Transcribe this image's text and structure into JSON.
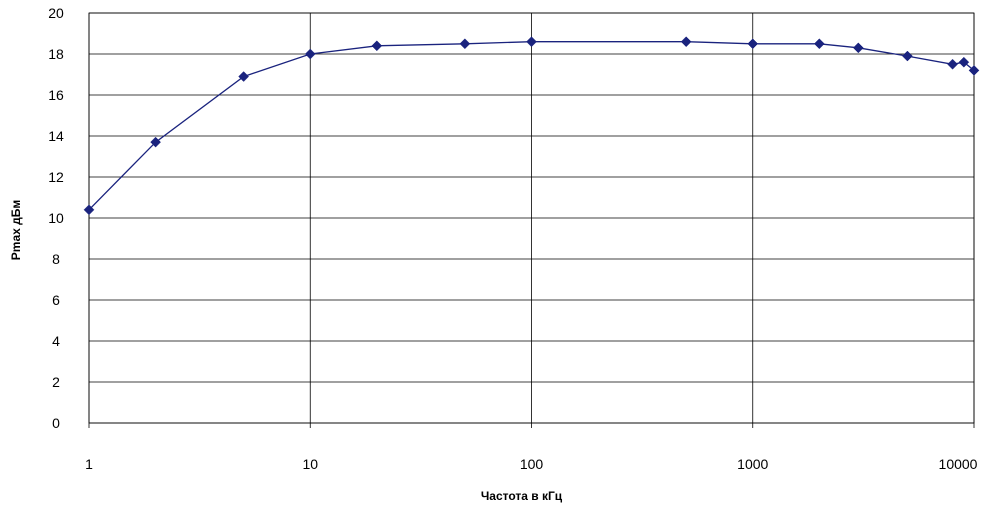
{
  "chart_data": {
    "type": "line",
    "title": "",
    "xlabel": "Частота в кГц",
    "ylabel": "Pmax дБм",
    "x_scale": "log",
    "xlim": [
      1,
      10000
    ],
    "ylim": [
      0,
      20
    ],
    "x_ticks": [
      "1",
      "10",
      "100",
      "1000",
      "10000"
    ],
    "y_ticks": [
      "0",
      "2",
      "4",
      "6",
      "8",
      "10",
      "12",
      "14",
      "16",
      "18",
      "20"
    ],
    "grid": true,
    "legend": "none",
    "series_color": "#1a237e",
    "series": [
      {
        "x": [
          1,
          2,
          5,
          10,
          20,
          50,
          100,
          500,
          1000,
          2000,
          3000,
          5000,
          8000,
          9000,
          10000
        ],
        "y": [
          10.4,
          13.7,
          16.9,
          18.0,
          18.4,
          18.5,
          18.6,
          18.6,
          18.5,
          18.5,
          18.3,
          17.9,
          17.5,
          17.6,
          17.2
        ]
      }
    ]
  }
}
